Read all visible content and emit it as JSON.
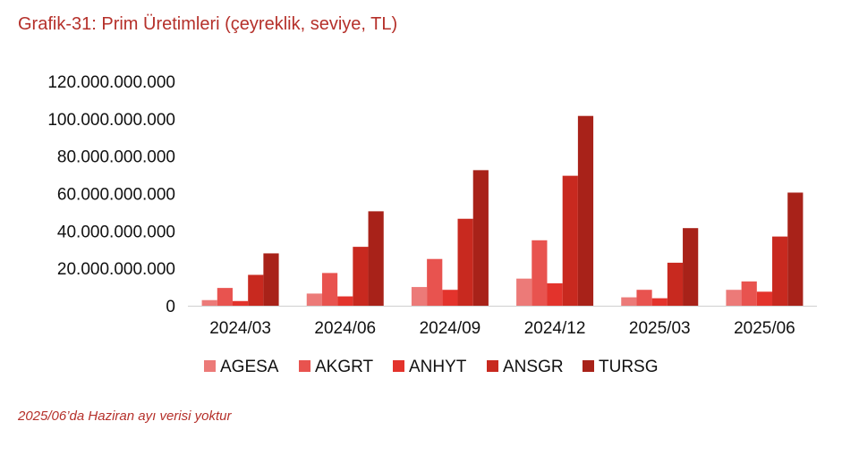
{
  "title": "Grafik-31: Prim Üretimleri (çeyreklik, seviye, TL)",
  "note": "2025/06’da Haziran ayı verisi yoktur",
  "chart_data": {
    "type": "bar",
    "categories": [
      "2024/03",
      "2024/06",
      "2024/09",
      "2024/12",
      "2025/03",
      "2025/06"
    ],
    "series": [
      {
        "name": "AGESA",
        "color": "#ec7a78",
        "values": [
          3000000000,
          6500000000,
          10000000000,
          14500000000,
          4500000000,
          8500000000
        ]
      },
      {
        "name": "AKGRT",
        "color": "#e8534f",
        "values": [
          9500000000,
          17500000000,
          25000000000,
          35000000000,
          8500000000,
          13000000000
        ]
      },
      {
        "name": "ANHYT",
        "color": "#e3332c",
        "values": [
          2500000000,
          5000000000,
          8500000000,
          12000000000,
          4000000000,
          7500000000
        ]
      },
      {
        "name": "ANSGR",
        "color": "#c8291f",
        "values": [
          16500000000,
          31500000000,
          46500000000,
          69500000000,
          23000000000,
          37000000000
        ]
      },
      {
        "name": "TURSG",
        "color": "#a82219",
        "values": [
          28000000000,
          50500000000,
          72500000000,
          101500000000,
          41500000000,
          60500000000
        ]
      }
    ],
    "ylim": [
      0,
      120000000000
    ],
    "yticks": [
      0,
      20000000000,
      40000000000,
      60000000000,
      80000000000,
      100000000000,
      120000000000
    ],
    "ytick_labels": [
      "0",
      "20.000.000.000",
      "40.000.000.000",
      "60.000.000.000",
      "80.000.000.000",
      "100.000.000.000",
      "120.000.000.000"
    ],
    "grid": false,
    "legend_position": "bottom"
  }
}
